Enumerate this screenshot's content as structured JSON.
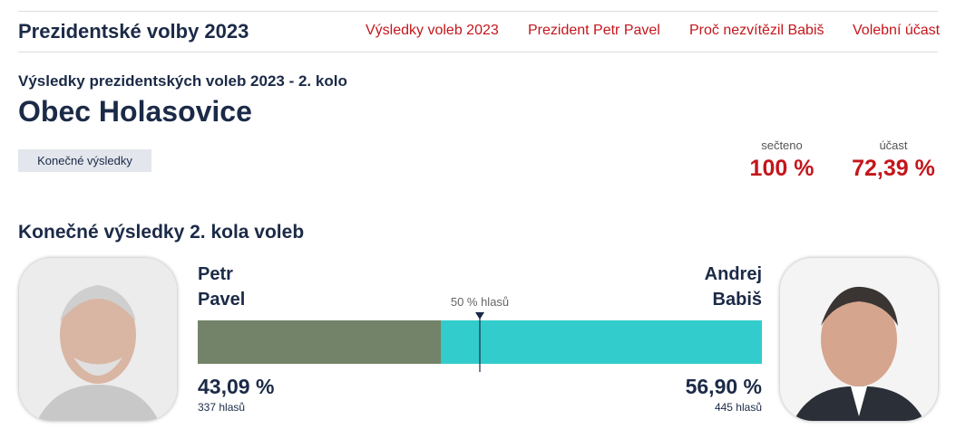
{
  "header": {
    "title": "Prezidentské volby 2023",
    "nav": [
      "Výsledky voleb 2023",
      "Prezident Petr Pavel",
      "Proč nezvítězil Babiš",
      "Volební účast"
    ]
  },
  "page": {
    "subtitle": "Výsledky prezidentských voleb 2023 - 2. kolo",
    "title": "Obec Holasovice",
    "tag": "Konečné výsledky",
    "stats": [
      {
        "label": "sečteno",
        "value": "100 %"
      },
      {
        "label": "účast",
        "value": "72,39 %"
      }
    ]
  },
  "results": {
    "heading": "Konečné výsledky 2. kola voleb",
    "xlim": [
      0,
      100
    ],
    "midpoint": {
      "value": 50,
      "label": "50 % hlasů"
    },
    "candidates": [
      {
        "first": "Petr",
        "last": "Pavel",
        "percent": 43.09,
        "percent_label": "43,09 %",
        "votes": "337 hlasů",
        "color": "#738369"
      },
      {
        "first": "Andrej",
        "last": "Babiš",
        "percent": 56.9,
        "percent_label": "56,90 %",
        "votes": "445 hlasů",
        "color": "#33cccc"
      }
    ]
  }
}
